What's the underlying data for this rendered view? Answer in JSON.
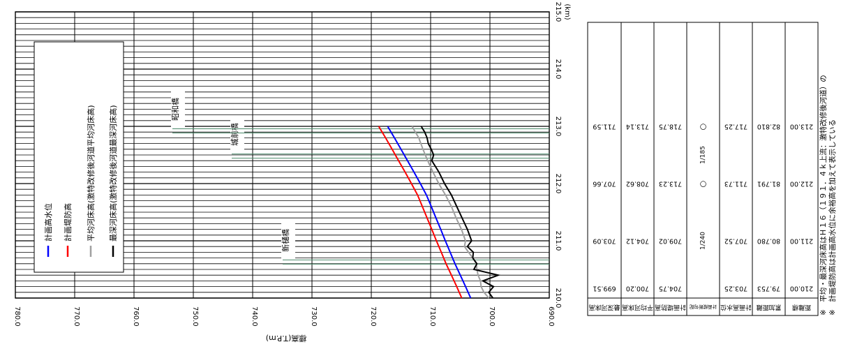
{
  "chart_data": {
    "type": "line",
    "title": "",
    "xlabel": "(km)",
    "ylabel": "標高(T.P.m)",
    "xlim": [
      210.0,
      215.0
    ],
    "ylim": [
      690.0,
      780.0
    ],
    "x_ticks": [
      "210.0",
      "211.0",
      "212.0",
      "213.0",
      "214.0",
      "215.0"
    ],
    "y_ticks": [
      "780.0",
      "770.0",
      "760.0",
      "750.0",
      "740.0",
      "730.0",
      "720.0",
      "710.0",
      "700.0",
      "690.0"
    ],
    "grid": true,
    "legend_position": "upper-left",
    "series": [
      {
        "name": "計画高水位",
        "color": "#0000ff",
        "points": [
          [
            210.0,
            703.25
          ],
          [
            210.2,
            704.1
          ],
          [
            210.4,
            705.0
          ],
          [
            210.6,
            705.9
          ],
          [
            210.8,
            706.7
          ],
          [
            211.0,
            707.52
          ],
          [
            211.2,
            708.3
          ],
          [
            211.4,
            709.1
          ],
          [
            211.6,
            709.9
          ],
          [
            211.8,
            710.7
          ],
          [
            212.0,
            711.73
          ],
          [
            212.2,
            712.8
          ],
          [
            212.4,
            713.9
          ],
          [
            212.6,
            715.0
          ],
          [
            212.8,
            716.1
          ],
          [
            213.0,
            717.25
          ]
        ]
      },
      {
        "name": "計画堤防高",
        "color": "#ff0000",
        "points": [
          [
            210.0,
            704.75
          ],
          [
            210.2,
            705.6
          ],
          [
            210.4,
            706.5
          ],
          [
            210.6,
            707.4
          ],
          [
            210.8,
            708.2
          ],
          [
            211.0,
            709.02
          ],
          [
            211.2,
            709.8
          ],
          [
            211.4,
            710.6
          ],
          [
            211.6,
            711.4
          ],
          [
            211.8,
            712.2
          ],
          [
            212.0,
            713.23
          ],
          [
            212.2,
            714.3
          ],
          [
            212.4,
            715.4
          ],
          [
            212.6,
            716.5
          ],
          [
            212.8,
            717.6
          ],
          [
            213.0,
            718.75
          ]
        ]
      },
      {
        "name": "平均河床高(激特改修後河道平均河床高)",
        "color": "#a0a0a0",
        "points": [
          [
            210.0,
            700.2
          ],
          [
            210.1,
            701.0
          ],
          [
            210.2,
            701.5
          ],
          [
            210.3,
            701.6
          ],
          [
            210.4,
            702.0
          ],
          [
            210.5,
            702.2
          ],
          [
            210.6,
            702.3
          ],
          [
            210.7,
            702.9
          ],
          [
            210.8,
            703.6
          ],
          [
            210.9,
            704.3
          ],
          [
            211.0,
            704.12
          ],
          [
            211.2,
            704.8
          ],
          [
            211.4,
            705.7
          ],
          [
            211.6,
            706.5
          ],
          [
            211.8,
            707.5
          ],
          [
            212.0,
            708.62
          ],
          [
            212.2,
            709.6
          ],
          [
            212.4,
            710.5
          ],
          [
            212.6,
            711.3
          ],
          [
            212.8,
            712.0
          ],
          [
            213.0,
            713.14
          ]
        ]
      },
      {
        "name": "最深河床高(激特改修後河道最深河床高)",
        "color": "#000000",
        "points": [
          [
            210.0,
            699.51
          ],
          [
            210.1,
            700.2
          ],
          [
            210.2,
            699.4
          ],
          [
            210.3,
            701.2
          ],
          [
            210.4,
            698.6
          ],
          [
            210.5,
            702.7
          ],
          [
            210.6,
            702.2
          ],
          [
            210.7,
            702.9
          ],
          [
            210.8,
            702.8
          ],
          [
            210.9,
            703.8
          ],
          [
            211.0,
            703.09
          ],
          [
            211.2,
            703.8
          ],
          [
            211.4,
            704.7
          ],
          [
            211.6,
            705.6
          ],
          [
            211.8,
            706.5
          ],
          [
            212.0,
            707.66
          ],
          [
            212.2,
            708.6
          ],
          [
            212.3,
            709.2
          ],
          [
            212.4,
            709.8
          ],
          [
            212.5,
            709.5
          ],
          [
            212.6,
            709.9
          ],
          [
            212.7,
            710.4
          ],
          [
            212.8,
            710.6
          ],
          [
            212.9,
            711.0
          ],
          [
            213.0,
            711.59
          ]
        ]
      }
    ],
    "bridges": [
      {
        "name": "新樋橋",
        "x": 210.63
      },
      {
        "name": "城前橋",
        "x": 212.48
      },
      {
        "name": "昭和橋",
        "x": 212.92
      }
    ]
  },
  "data_table": {
    "row_headers": [
      "距離標",
      "累加距離",
      "計画高水位",
      "計画縦断勾配",
      "計画堤防高",
      "平均河床高",
      "最深河床高"
    ],
    "columns": [
      {
        "x": 210.0,
        "values": [
          "210.00",
          "79.753",
          "703.25",
          "",
          "704.75",
          "700.20",
          "699.51"
        ]
      },
      {
        "x": 211.0,
        "values": [
          "211.00",
          "80.780",
          "707.52",
          "",
          "709.02",
          "704.12",
          "703.09"
        ]
      },
      {
        "x": 212.0,
        "values": [
          "212.00",
          "81.791",
          "711.73",
          "○",
          "713.23",
          "708.62",
          "707.66"
        ]
      },
      {
        "x": 213.0,
        "values": [
          "213.00",
          "82.810",
          "717.25",
          "○",
          "718.75",
          "713.14",
          "711.59"
        ]
      }
    ],
    "gradients": [
      {
        "x": 211.0,
        "text": "1/240"
      },
      {
        "x": 212.5,
        "text": "1/185"
      }
    ]
  },
  "notes": [
    "※　平均・最深河床高はＨ１６（１９１．４ｋ上流：激特改修後河道）の",
    "※　計画堤防高は計画高水位に余裕高を加えて表示している"
  ]
}
